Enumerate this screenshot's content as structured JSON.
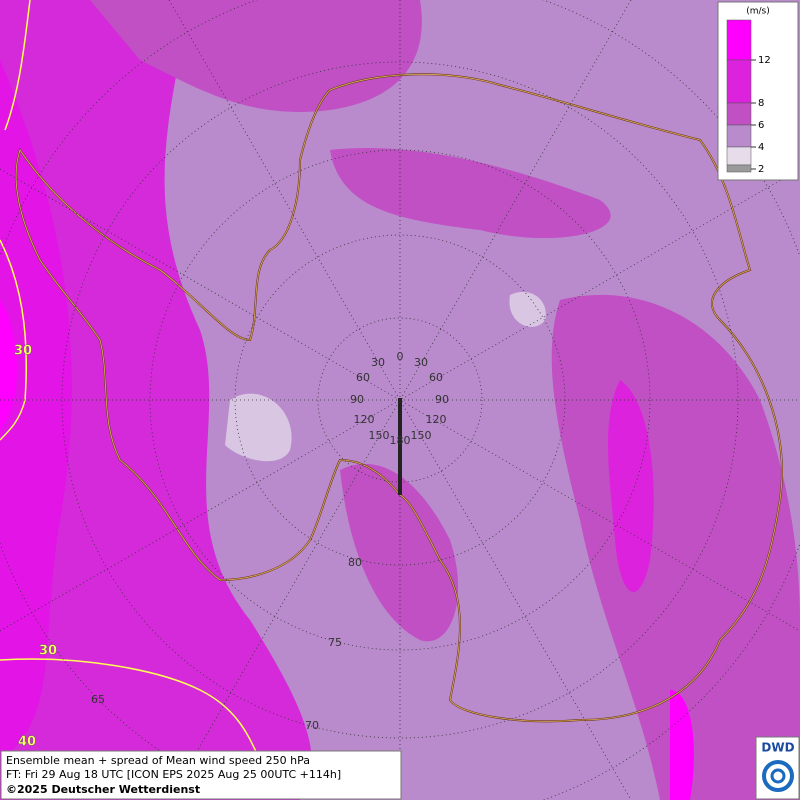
{
  "legend": {
    "unit": "(m/s)",
    "ticks": [
      12,
      8,
      6,
      4,
      2
    ],
    "colors": [
      "#ff00ff",
      "#dd22dd",
      "#c050c4",
      "#b98acc",
      "#e6dcea",
      "#9a9a9a"
    ]
  },
  "contour_labels": [
    "30",
    "30",
    "40"
  ],
  "longitude_labels": [
    "0",
    "30",
    "60",
    "90",
    "120",
    "150",
    "180",
    "30",
    "60",
    "90",
    "120",
    "150"
  ],
  "latitude_labels": [
    "80",
    "75",
    "70",
    "65"
  ],
  "caption": {
    "line1": "Ensemble mean + spread of Mean wind speed 250 hPa",
    "line2": "FT: Fri 29 Aug 18 UTC [ICON EPS 2025 Aug 25 00UTC +114h]",
    "line3": "©2025 Deutscher Wetterdienst"
  },
  "logo": "DWD"
}
